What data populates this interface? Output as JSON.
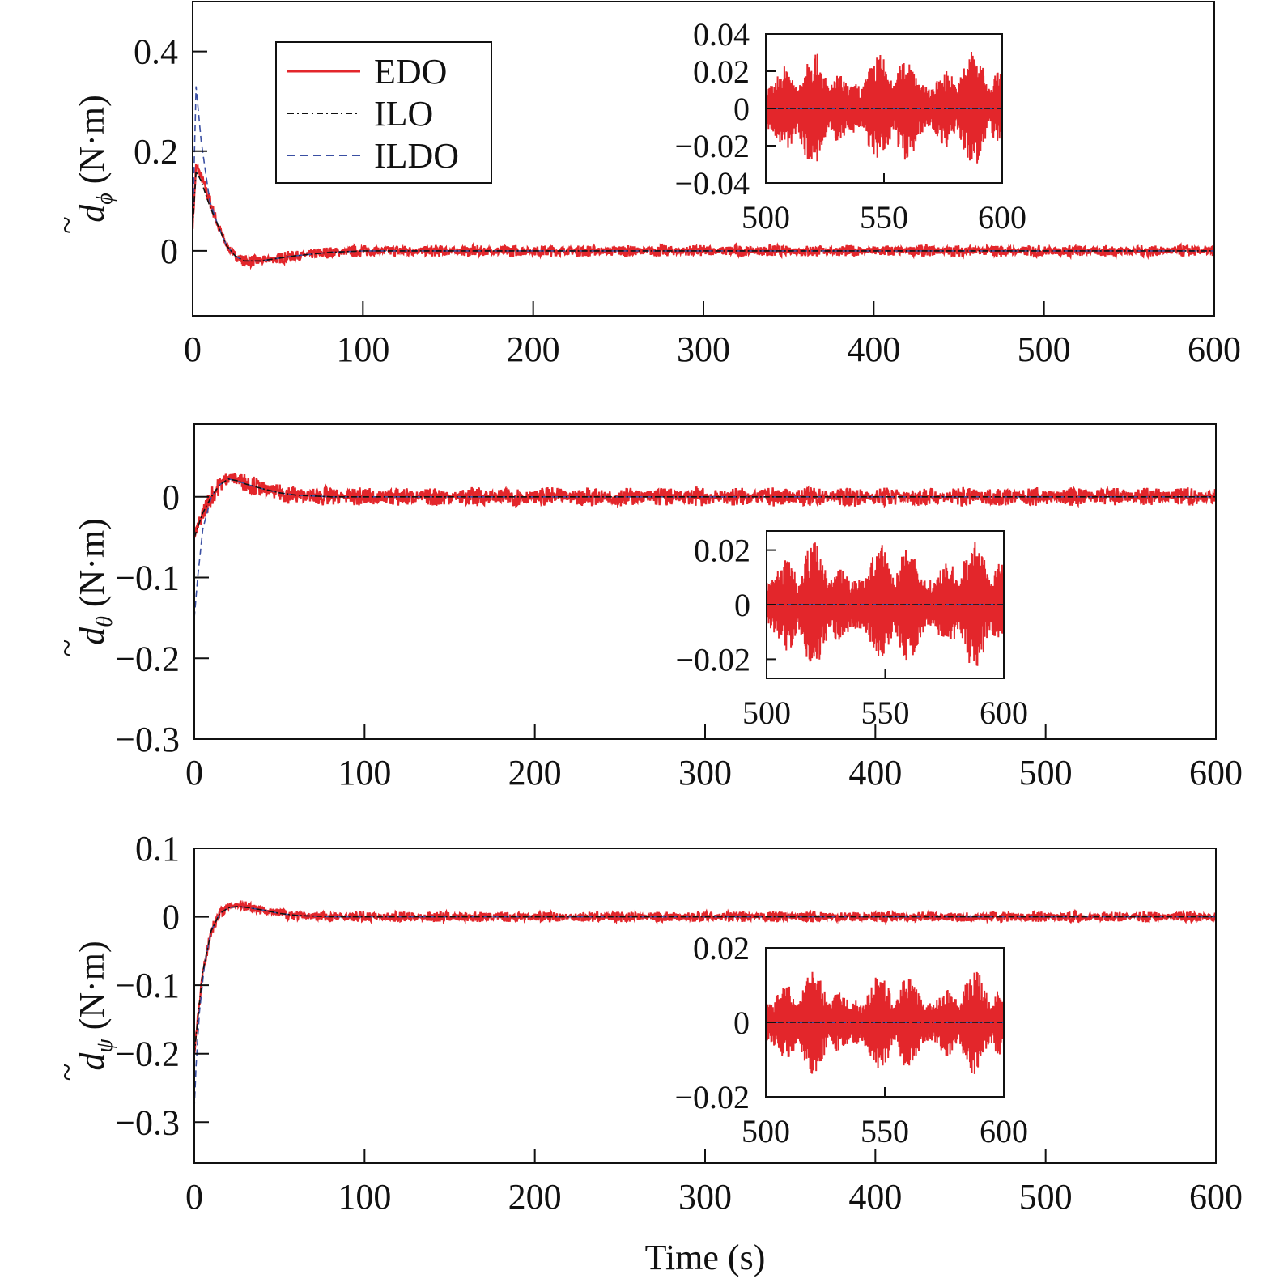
{
  "x_axis_label": "Time (s)",
  "legend": {
    "entries": [
      {
        "name": "EDO",
        "color": "#e3262b",
        "style": "solid"
      },
      {
        "name": "ILO",
        "color": "#111111",
        "style": "dashdot"
      },
      {
        "name": "ILDO",
        "color": "#3a4fa3",
        "style": "dashed"
      }
    ]
  },
  "chart_data": [
    {
      "type": "line",
      "ylabel_symbol": "d",
      "ylabel_subscript": "ϕ",
      "ylabel_unit": "(N·m)",
      "xlim": [
        0,
        600
      ],
      "ylim": [
        -0.13,
        0.5
      ],
      "xticks": [
        0,
        100,
        200,
        300,
        400,
        500,
        600
      ],
      "yticks": [
        0,
        0.2,
        0.4
      ],
      "ytick_labels": [
        "0",
        "0.2",
        "0.4"
      ],
      "series": [
        {
          "name": "EDO",
          "x": [
            0,
            2,
            5,
            10,
            15,
            20,
            25,
            30,
            40,
            50,
            60,
            80,
            100,
            600
          ],
          "y": [
            0.05,
            0.17,
            0.15,
            0.1,
            0.05,
            0.01,
            -0.01,
            -0.02,
            -0.02,
            -0.015,
            -0.01,
            -0.003,
            0,
            0
          ],
          "noise": 0.012
        },
        {
          "name": "ILO",
          "x": [
            0,
            2,
            5,
            10,
            15,
            20,
            25,
            30,
            40,
            50,
            60,
            80,
            100,
            600
          ],
          "y": [
            0.05,
            0.16,
            0.14,
            0.09,
            0.05,
            0.01,
            -0.01,
            -0.02,
            -0.02,
            -0.015,
            -0.01,
            -0.003,
            0,
            0
          ],
          "noise": 0
        },
        {
          "name": "ILDO",
          "x": [
            0,
            2,
            5,
            10,
            15,
            20,
            25,
            30,
            40,
            50,
            60,
            80,
            100,
            600
          ],
          "y": [
            0.05,
            0.33,
            0.22,
            0.1,
            0.05,
            0.01,
            -0.01,
            -0.02,
            -0.02,
            -0.015,
            -0.01,
            -0.003,
            0,
            0
          ],
          "noise": 0
        }
      ],
      "inset": {
        "xlim": [
          500,
          600
        ],
        "ylim": [
          -0.04,
          0.04
        ],
        "xticks": [
          500,
          550,
          600
        ],
        "yticks": [
          -0.04,
          -0.02,
          0,
          0.02,
          0.04
        ],
        "ytick_labels": [
          "−0.04",
          "−0.02",
          "0",
          "0.02",
          "0.04"
        ],
        "edo_amplitude": 0.032
      }
    },
    {
      "type": "line",
      "ylabel_symbol": "d",
      "ylabel_subscript": "θ",
      "ylabel_unit": "(N·m)",
      "xlim": [
        0,
        600
      ],
      "ylim": [
        -0.3,
        0.09
      ],
      "xticks": [
        0,
        100,
        200,
        300,
        400,
        500,
        600
      ],
      "yticks": [
        -0.3,
        -0.2,
        -0.1,
        0
      ],
      "ytick_labels": [
        "−0.3",
        "−0.2",
        "−0.1",
        "0"
      ],
      "series": [
        {
          "name": "EDO",
          "x": [
            0,
            5,
            10,
            15,
            20,
            25,
            30,
            40,
            50,
            60,
            80,
            100,
            600
          ],
          "y": [
            -0.05,
            -0.02,
            0.0,
            0.015,
            0.025,
            0.022,
            0.018,
            0.01,
            0.005,
            0.002,
            0,
            0,
            0
          ],
          "noise": 0.012
        },
        {
          "name": "ILO",
          "x": [
            0,
            5,
            10,
            15,
            20,
            25,
            30,
            40,
            50,
            60,
            80,
            100,
            600
          ],
          "y": [
            -0.05,
            -0.02,
            0.0,
            0.015,
            0.022,
            0.02,
            0.016,
            0.01,
            0.005,
            0.002,
            0,
            0,
            0
          ],
          "noise": 0
        },
        {
          "name": "ILDO",
          "x": [
            0,
            2,
            5,
            10,
            15,
            20,
            25,
            30,
            40,
            50,
            60,
            80,
            100,
            600
          ],
          "y": [
            -0.15,
            -0.1,
            -0.04,
            0.0,
            0.015,
            0.022,
            0.02,
            0.016,
            0.01,
            0.005,
            0.002,
            0,
            0,
            0
          ],
          "noise": 0
        }
      ],
      "inset": {
        "xlim": [
          500,
          600
        ],
        "ylim": [
          -0.027,
          0.027
        ],
        "xticks": [
          500,
          550,
          600
        ],
        "yticks": [
          -0.02,
          0,
          0.02
        ],
        "ytick_labels": [
          "−0.02",
          "0",
          "0.02"
        ],
        "edo_amplitude": 0.024
      }
    },
    {
      "type": "line",
      "ylabel_symbol": "d",
      "ylabel_subscript": "ψ",
      "ylabel_unit": "(N·m)",
      "xlim": [
        0,
        600
      ],
      "ylim": [
        -0.36,
        0.1
      ],
      "xticks": [
        0,
        100,
        200,
        300,
        400,
        500,
        600
      ],
      "yticks": [
        -0.3,
        -0.2,
        -0.1,
        0,
        0.1
      ],
      "ytick_labels": [
        "−0.3",
        "−0.2",
        "−0.1",
        "0",
        "0.1"
      ],
      "series": [
        {
          "name": "EDO",
          "x": [
            0,
            2,
            5,
            10,
            15,
            20,
            25,
            30,
            40,
            50,
            60,
            80,
            100,
            600
          ],
          "y": [
            -0.2,
            -0.15,
            -0.08,
            -0.02,
            0.005,
            0.015,
            0.018,
            0.016,
            0.01,
            0.005,
            0.002,
            0,
            0,
            0
          ],
          "noise": 0.008
        },
        {
          "name": "ILO",
          "x": [
            0,
            2,
            5,
            10,
            15,
            20,
            25,
            30,
            40,
            50,
            60,
            80,
            100,
            600
          ],
          "y": [
            -0.2,
            -0.15,
            -0.08,
            -0.02,
            0.005,
            0.013,
            0.015,
            0.014,
            0.01,
            0.005,
            0.002,
            0,
            0,
            0
          ],
          "noise": 0
        },
        {
          "name": "ILDO",
          "x": [
            0,
            1,
            3,
            6,
            10,
            15,
            20,
            25,
            30,
            40,
            50,
            60,
            80,
            100,
            600
          ],
          "y": [
            -0.28,
            -0.22,
            -0.14,
            -0.07,
            -0.02,
            0.005,
            0.013,
            0.015,
            0.014,
            0.01,
            0.005,
            0.002,
            0,
            0,
            0
          ],
          "noise": 0
        }
      ],
      "inset": {
        "xlim": [
          500,
          600
        ],
        "ylim": [
          -0.02,
          0.02
        ],
        "xticks": [
          500,
          550,
          600
        ],
        "yticks": [
          -0.02,
          0,
          0.02
        ],
        "ytick_labels": [
          "−0.02",
          "0",
          "0.02"
        ],
        "edo_amplitude": 0.014
      }
    }
  ]
}
